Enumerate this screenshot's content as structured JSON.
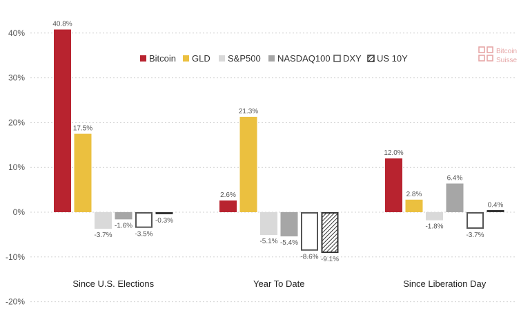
{
  "chart_data": {
    "type": "bar",
    "categories": [
      "Since U.S. Elections",
      "Year To Date",
      "Since Liberation Day"
    ],
    "series": [
      {
        "name": "Bitcoin",
        "values": [
          40.8,
          2.6,
          12.0
        ],
        "color": "#b8232f",
        "style": "solid"
      },
      {
        "name": "GLD",
        "values": [
          17.5,
          21.3,
          2.8
        ],
        "color": "#ebc03f",
        "style": "solid"
      },
      {
        "name": "S&P500",
        "values": [
          -3.7,
          -5.1,
          -1.8
        ],
        "color": "#d9d9d9",
        "style": "solid"
      },
      {
        "name": "NASDAQ100",
        "values": [
          -1.6,
          -5.4,
          6.4
        ],
        "color": "#a6a6a6",
        "style": "solid"
      },
      {
        "name": "DXY",
        "values": [
          -3.5,
          -8.6,
          -3.7
        ],
        "color": "#555555",
        "style": "outline"
      },
      {
        "name": "US 10Y",
        "values": [
          -0.3,
          -9.1,
          0.4
        ],
        "color": "#333333",
        "style": "hatched"
      }
    ],
    "data_labels": [
      [
        "40.8%",
        "2.6%",
        "12.0%"
      ],
      [
        "17.5%",
        "21.3%",
        "2.8%"
      ],
      [
        "-3.7%",
        "-5.1%",
        "-1.8%"
      ],
      [
        "-1.6%",
        "-5.4%",
        "6.4%"
      ],
      [
        "-3.5%",
        "-8.6%",
        "-3.7%"
      ],
      [
        "-0.3%",
        "-9.1%",
        "0.4%"
      ]
    ],
    "ylim": [
      -20,
      40
    ],
    "yticks": [
      40,
      30,
      20,
      10,
      0,
      -10,
      -20
    ],
    "ytick_labels": [
      "40%",
      "30%",
      "20%",
      "10%",
      "0%",
      "-10%",
      "-20%"
    ],
    "grid": true,
    "legend_position": "top-center"
  },
  "logo": {
    "line1": "Bitcoin",
    "line2": "Suisse",
    "color": "#e6a6a6"
  }
}
